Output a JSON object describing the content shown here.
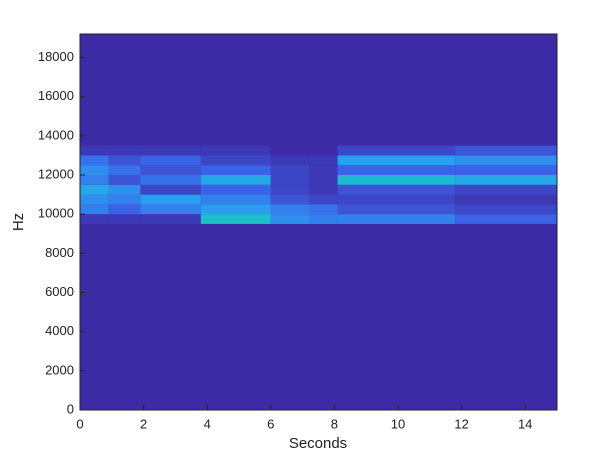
{
  "chart_data": {
    "type": "spectrogram",
    "xlabel": "Seconds",
    "ylabel": "Hz",
    "xlim": [
      0,
      15
    ],
    "ylim": [
      0,
      19200
    ],
    "xticks": [
      0,
      2,
      4,
      6,
      8,
      10,
      12,
      14
    ],
    "yticks": [
      0,
      2000,
      4000,
      6000,
      8000,
      10000,
      12000,
      14000,
      16000,
      18000
    ],
    "x_edges": [
      0,
      0.9,
      1.9,
      3.8,
      6.0,
      7.2,
      8.1,
      11.8,
      15
    ],
    "y_edges": [
      9500,
      10000,
      10500,
      11000,
      11500,
      12000,
      12500,
      13000,
      13500
    ],
    "values": [
      [
        0.05,
        0.3,
        0.35,
        0.45,
        0.3,
        0.35,
        0.25,
        0.05
      ],
      [
        0.05,
        0.2,
        0.3,
        0.35,
        0.15,
        0.25,
        0.15,
        0.05
      ],
      [
        0.05,
        0.3,
        0.4,
        0.1,
        0.25,
        0.15,
        0.2,
        0.05
      ],
      [
        0.6,
        0.4,
        0.3,
        0.2,
        0.45,
        0.2,
        0.1,
        0.05
      ],
      [
        0.35,
        0.3,
        0.15,
        0.1,
        0.1,
        0.1,
        0.05,
        0.0
      ],
      [
        0.3,
        0.25,
        0.1,
        0.05,
        0.05,
        0.05,
        0.05,
        0.0
      ],
      [
        0.3,
        0.15,
        0.1,
        0.15,
        0.55,
        0.2,
        0.4,
        0.1
      ],
      [
        0.2,
        0.1,
        0.05,
        0.1,
        0.45,
        0.2,
        0.35,
        0.15
      ]
    ],
    "background": "#3d2aa5",
    "colormap": [
      "#3d2aa5",
      "#3b63e8",
      "#2a9ef0",
      "#1cc0c8",
      "#7fcb5e",
      "#f0e830"
    ]
  }
}
